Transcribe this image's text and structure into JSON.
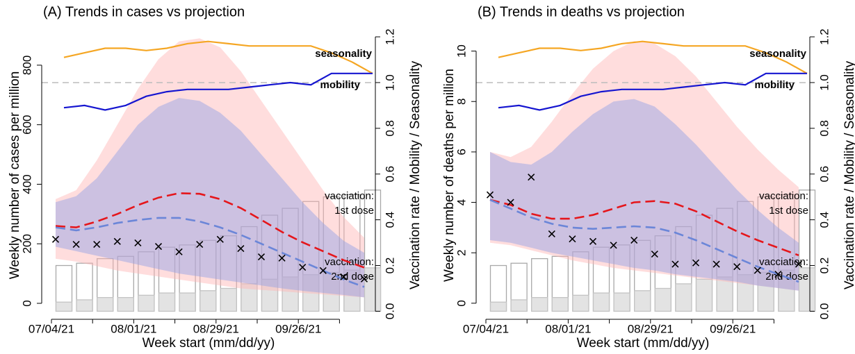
{
  "chart_data": [
    {
      "type": "line",
      "title": "(A) Trends in cases vs projection",
      "x_label": "Week start (mm/dd/yy)",
      "y_label": "Weekly number of cases per million",
      "y2_label": "Vaccination rate / Mobility / Seasonality",
      "categories": [
        "07/04/21",
        null,
        null,
        null,
        "08/01/21",
        null,
        null,
        null,
        "08/29/21",
        null,
        null,
        null,
        "09/26/21",
        null,
        null,
        null
      ],
      "ylim": [
        -42,
        949
      ],
      "yticks": [
        0,
        200,
        400,
        600,
        800
      ],
      "y2lim": [
        -0.02,
        1.27
      ],
      "y2ticks": [
        {
          "value": 0,
          "label": "0.0"
        },
        0.2,
        0.4,
        0.6,
        0.8,
        {
          "value": 1,
          "label": "1.0"
        },
        1.2
      ],
      "hline_y2": {
        "value": 1,
        "color": "#bbbbbb"
      },
      "bands": [
        {
          "color": "#ffb3b3",
          "lower": [
            150,
            140,
            125,
            110,
            100,
            90,
            80,
            70,
            60,
            50,
            45,
            40,
            35,
            30,
            25,
            20
          ],
          "upper": [
            350,
            380,
            480,
            600,
            720,
            820,
            880,
            890,
            860,
            780,
            680,
            580,
            480,
            380,
            290,
            220
          ]
        },
        {
          "color": "#8fa0e6",
          "lower": [
            190,
            175,
            160,
            145,
            130,
            115,
            100,
            90,
            80,
            70,
            60,
            50,
            42,
            35,
            28,
            20
          ],
          "upper": [
            340,
            360,
            420,
            510,
            600,
            660,
            690,
            680,
            640,
            580,
            500,
            420,
            340,
            270,
            210,
            170
          ]
        }
      ],
      "series": [
        {
          "style": "bar-outline",
          "axis": "y2",
          "color": "#a8a8a8",
          "label": [
            "vacciation:",
            "1st dose"
          ],
          "values": [
            0.2,
            0.21,
            0.23,
            0.24,
            0.26,
            0.28,
            0.29,
            0.31,
            0.33,
            0.37,
            0.42,
            0.45,
            0.48,
            0.5,
            0.51,
            0.53
          ]
        },
        {
          "style": "bar-fill",
          "axis": "y2",
          "color": "#e3e3e3",
          "label": [
            "vacciation:",
            "2nd dose"
          ],
          "values": [
            0.04,
            0.05,
            0.06,
            0.06,
            0.07,
            0.08,
            0.08,
            0.09,
            0.1,
            0.12,
            0.14,
            0.15,
            0.16,
            0.17,
            0.18,
            0.19
          ]
        },
        {
          "style": "line",
          "axis": "y2",
          "color": "#f5a623",
          "label": [
            "seasonality"
          ],
          "values": [
            1.11,
            1.13,
            1.15,
            1.15,
            1.14,
            1.15,
            1.17,
            1.18,
            1.17,
            1.16,
            1.16,
            1.16,
            1.16,
            1.13,
            1.09,
            1.04
          ]
        },
        {
          "style": "line",
          "axis": "y2",
          "color": "#1515d0",
          "label": [
            "mobility"
          ],
          "values": [
            0.89,
            0.9,
            0.88,
            0.9,
            0.94,
            0.96,
            0.97,
            0.97,
            0.97,
            0.98,
            0.99,
            1.0,
            0.99,
            1.04,
            1.04,
            1.04
          ]
        },
        {
          "style": "dashed",
          "color": "#e5161b",
          "values": [
            260,
            255,
            275,
            300,
            330,
            355,
            370,
            368,
            350,
            320,
            280,
            240,
            205,
            175,
            145,
            120
          ]
        },
        {
          "style": "dashed",
          "color": "#6b86d8",
          "values": [
            255,
            245,
            255,
            270,
            280,
            287,
            287,
            275,
            255,
            230,
            200,
            170,
            140,
            110,
            80,
            55
          ]
        },
        {
          "style": "points",
          "color": "#000000",
          "values": [
            215,
            198,
            198,
            208,
            203,
            191,
            173,
            198,
            215,
            184,
            156,
            152,
            121,
            110,
            89,
            82
          ]
        }
      ]
    },
    {
      "type": "line",
      "title": "(B) Trends in deaths vs projection",
      "x_label": "Week start (mm/dd/yy)",
      "y_label": "Weekly number of deaths per million",
      "y2_label": "Vaccination rate / Mobility / Seasonality",
      "categories": [
        "07/04/21",
        null,
        null,
        null,
        "08/01/21",
        null,
        null,
        null,
        "08/29/21",
        null,
        null,
        null,
        "09/26/21",
        null,
        null,
        null
      ],
      "ylim": [
        -0.5,
        11.2
      ],
      "yticks": [
        0,
        2,
        4,
        6,
        8,
        10
      ],
      "y2lim": [
        -0.02,
        1.27
      ],
      "y2ticks": [
        {
          "value": 0,
          "label": "0.0"
        },
        0.2,
        0.4,
        0.6,
        0.8,
        {
          "value": 1,
          "label": "1.0"
        },
        1.2
      ],
      "hline_y2": {
        "value": 1,
        "color": "#bbbbbb"
      },
      "bands": [
        {
          "color": "#ffb3b3",
          "lower": [
            2.4,
            2.3,
            2.1,
            1.9,
            1.7,
            1.55,
            1.4,
            1.3,
            1.2,
            1.1,
            1.0,
            0.9,
            0.8,
            0.7,
            0.6,
            0.5
          ],
          "upper": [
            6.0,
            5.8,
            6.2,
            7.2,
            8.3,
            9.3,
            10.0,
            10.4,
            10.3,
            9.8,
            9.0,
            8.0,
            7.0,
            6.1,
            5.3,
            4.6
          ]
        },
        {
          "color": "#8fa0e6",
          "lower": [
            2.5,
            2.4,
            2.2,
            2.0,
            1.85,
            1.7,
            1.55,
            1.4,
            1.3,
            1.15,
            1.05,
            0.95,
            0.85,
            0.7,
            0.6,
            0.5
          ],
          "upper": [
            6.0,
            5.6,
            5.5,
            6.0,
            6.8,
            7.5,
            8.0,
            8.1,
            7.8,
            7.1,
            6.3,
            5.4,
            4.5,
            3.7,
            3.0,
            2.4
          ]
        }
      ],
      "series": [
        {
          "style": "bar-outline",
          "axis": "y2",
          "color": "#a8a8a8",
          "label": [
            "vacciation:",
            "1st dose"
          ],
          "values": [
            0.2,
            0.21,
            0.23,
            0.24,
            0.26,
            0.28,
            0.29,
            0.31,
            0.33,
            0.37,
            0.42,
            0.45,
            0.48,
            0.5,
            0.51,
            0.53
          ]
        },
        {
          "style": "bar-fill",
          "axis": "y2",
          "color": "#e3e3e3",
          "label": [
            "vacciation:",
            "2nd dose"
          ],
          "values": [
            0.04,
            0.05,
            0.06,
            0.06,
            0.07,
            0.08,
            0.08,
            0.09,
            0.1,
            0.12,
            0.14,
            0.15,
            0.16,
            0.17,
            0.18,
            0.19
          ]
        },
        {
          "style": "line",
          "axis": "y2",
          "color": "#f5a623",
          "label": [
            "seasonality"
          ],
          "values": [
            1.11,
            1.13,
            1.15,
            1.15,
            1.14,
            1.15,
            1.17,
            1.18,
            1.17,
            1.16,
            1.16,
            1.16,
            1.16,
            1.13,
            1.09,
            1.04
          ]
        },
        {
          "style": "line",
          "axis": "y2",
          "color": "#1515d0",
          "label": [
            "mobility"
          ],
          "values": [
            0.89,
            0.9,
            0.88,
            0.9,
            0.94,
            0.96,
            0.97,
            0.97,
            0.97,
            0.98,
            0.99,
            1.0,
            0.99,
            1.04,
            1.04,
            1.04
          ]
        },
        {
          "style": "dashed",
          "color": "#e5161b",
          "values": [
            4.1,
            3.9,
            3.55,
            3.35,
            3.35,
            3.5,
            3.75,
            4.0,
            4.05,
            3.95,
            3.65,
            3.25,
            2.85,
            2.5,
            2.2,
            1.9
          ]
        },
        {
          "style": "dashed",
          "color": "#6b86d8",
          "values": [
            4.1,
            3.75,
            3.4,
            3.15,
            3.0,
            2.95,
            3.0,
            3.05,
            3.0,
            2.8,
            2.5,
            2.15,
            1.8,
            1.45,
            1.15,
            0.85
          ]
        },
        {
          "style": "points",
          "color": "#000000",
          "values": [
            4.3,
            4.0,
            5.0,
            2.75,
            2.55,
            2.45,
            2.3,
            2.5,
            1.95,
            1.55,
            1.6,
            1.55,
            1.45,
            1.3,
            1.15,
            1.55
          ]
        }
      ]
    }
  ]
}
